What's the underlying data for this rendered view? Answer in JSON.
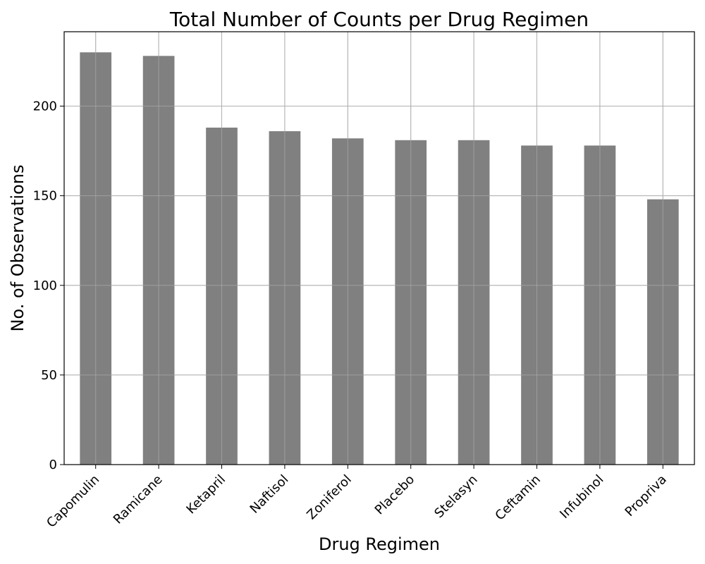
{
  "chart_data": {
    "type": "bar",
    "title": "Total Number of Counts per Drug Regimen",
    "xlabel": "Drug Regimen",
    "ylabel": "No. of Observations",
    "categories": [
      "Capomulin",
      "Ramicane",
      "Ketapril",
      "Naftisol",
      "Zoniferol",
      "Placebo",
      "Stelasyn",
      "Ceftamin",
      "Infubinol",
      "Propriva"
    ],
    "values": [
      230,
      228,
      188,
      186,
      182,
      181,
      181,
      178,
      178,
      148
    ],
    "ylim": [
      0,
      241.5
    ],
    "yticks": [
      0,
      50,
      100,
      150,
      200
    ],
    "ytick_labels": [
      "0",
      "50",
      "100",
      "150",
      "200"
    ],
    "grid": true,
    "bar_color": "#808080",
    "grid_color": "#b0b0b0"
  }
}
